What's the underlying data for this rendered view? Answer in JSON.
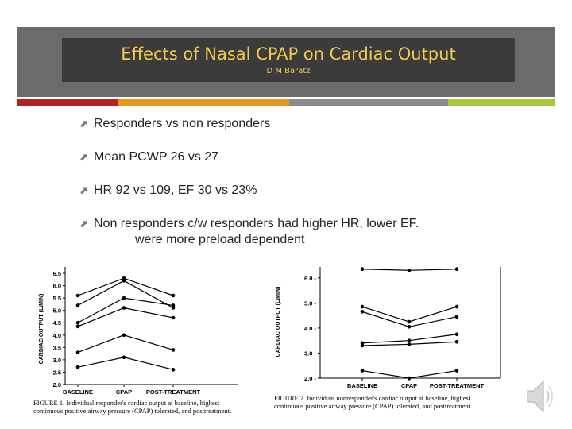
{
  "slide": {
    "title": "Effects of Nasal CPAP on Cardiac Output",
    "author": "D M Baratz",
    "bullets": [
      "Responders vs non responders",
      "Mean PCWP  26 vs 27",
      "HR 92 vs 109, EF 30 vs 23%",
      "Non responders c/w responders had higher HR, lower EF."
    ],
    "bullet4_line2": "were more preload dependent",
    "accent_colors": [
      "#b22222",
      "#e6951f",
      "#8a8a8a",
      "#a6c93a"
    ],
    "title_color": "#f2c94c"
  },
  "chart_data": [
    {
      "type": "line",
      "caption": "FIGURE 1. Individual responder's cardiac output at baseline, highest continuous positive airway pressure (CPAP) tolerated, and posttreatment.",
      "ylabel": "CARDIAC OUTPUT (L\\MIN)",
      "categories": [
        "BASELINE",
        "CPAP",
        "POST-TREATMENT"
      ],
      "ylim": [
        2.0,
        6.5
      ],
      "yticks": [
        "6.5",
        "6.0",
        "5.5",
        "5.0",
        "4.5",
        "4.0",
        "3.5",
        "3.0",
        "2.5",
        "2.0"
      ],
      "series": [
        {
          "values": [
            5.6,
            6.3,
            5.6
          ]
        },
        {
          "values": [
            5.2,
            6.2,
            5.1
          ]
        },
        {
          "values": [
            4.5,
            5.5,
            5.2
          ]
        },
        {
          "values": [
            4.35,
            5.1,
            4.7
          ]
        },
        {
          "values": [
            3.3,
            4.0,
            3.4
          ]
        },
        {
          "values": [
            2.7,
            3.1,
            2.6
          ]
        }
      ]
    },
    {
      "type": "line",
      "caption": "FIGURE 2. Individual nonresponder's cardiac output at baseline, highest continuous positive airway pressure (CPAP) tolerated, and posttreatment.",
      "ylabel": "CARDIAC OUTPUT (L\\MIN)",
      "categories": [
        "BASELINE",
        "CPAP",
        "POST-TREATMENT"
      ],
      "ylim": [
        2.0,
        6.5
      ],
      "yticks": [
        "6.0",
        "5.0",
        "4.0",
        "3.0",
        "2.0"
      ],
      "series": [
        {
          "values": [
            6.35,
            6.3,
            6.35
          ]
        },
        {
          "values": [
            4.85,
            4.25,
            4.85
          ]
        },
        {
          "values": [
            4.65,
            4.05,
            4.45
          ]
        },
        {
          "values": [
            3.4,
            3.5,
            3.75
          ]
        },
        {
          "values": [
            3.3,
            3.35,
            3.45
          ]
        },
        {
          "values": [
            2.3,
            2.0,
            2.3
          ]
        }
      ]
    }
  ]
}
